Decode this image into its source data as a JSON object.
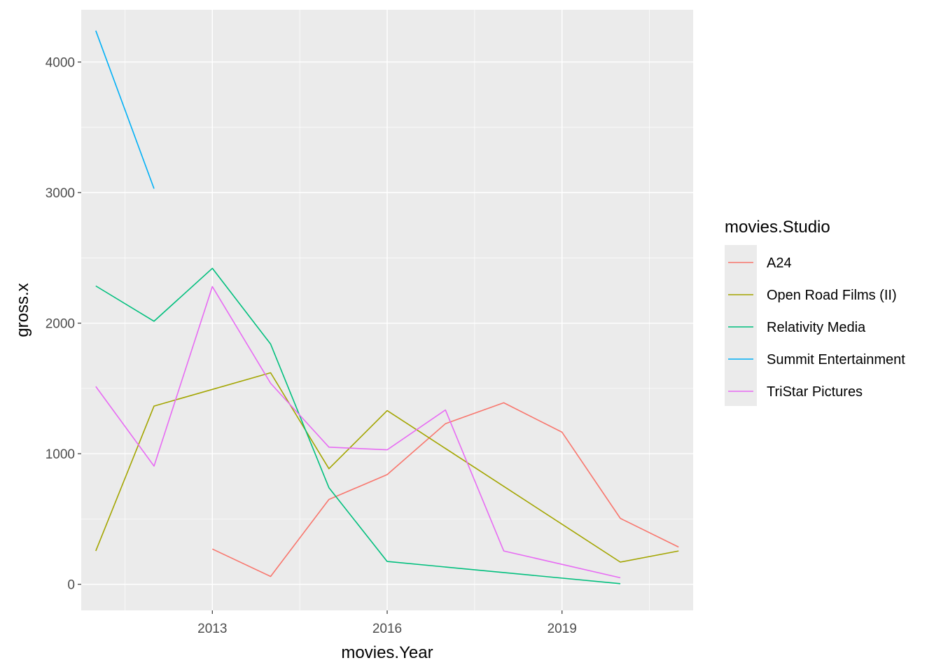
{
  "chart_data": {
    "type": "line",
    "xlabel": "movies.Year",
    "ylabel": "gross.x",
    "xlim": [
      2010.75,
      2021.25
    ],
    "ylim": [
      -200,
      4400
    ],
    "x_ticks": [
      2013,
      2016,
      2019
    ],
    "x_tick_labels": [
      "2013",
      "2016",
      "2019"
    ],
    "y_ticks": [
      0,
      1000,
      2000,
      3000,
      4000
    ],
    "y_tick_labels": [
      "0",
      "1000",
      "2000",
      "3000",
      "4000"
    ],
    "grid": true,
    "legend": {
      "title": "movies.Studio",
      "placement": "right"
    },
    "series": [
      {
        "name": "A24",
        "color": "#F8766D",
        "x": [
          2013,
          2014,
          2015,
          2016,
          2017,
          2018,
          2019,
          2020,
          2021
        ],
        "y": [
          270,
          60,
          650,
          840,
          1230,
          1390,
          1165,
          505,
          285
        ]
      },
      {
        "name": "Open Road Films (II)",
        "color": "#A3A500",
        "x": [
          2011,
          2012,
          2014,
          2015,
          2016,
          2020,
          2021
        ],
        "y": [
          255,
          1365,
          1620,
          885,
          1330,
          170,
          255
        ]
      },
      {
        "name": "Relativity Media",
        "color": "#00BF7D",
        "x": [
          2011,
          2012,
          2013,
          2014,
          2015,
          2016,
          2020
        ],
        "y": [
          2285,
          2015,
          2420,
          1840,
          740,
          175,
          5
        ]
      },
      {
        "name": "Summit Entertainment",
        "color": "#00B0F6",
        "x": [
          2011,
          2012
        ],
        "y": [
          4240,
          3030
        ]
      },
      {
        "name": "TriStar Pictures",
        "color": "#E76BF3",
        "x": [
          2011,
          2012,
          2013,
          2014,
          2015,
          2016,
          2017,
          2018,
          2020
        ],
        "y": [
          1515,
          905,
          2280,
          1540,
          1050,
          1030,
          1335,
          255,
          50
        ]
      }
    ]
  }
}
